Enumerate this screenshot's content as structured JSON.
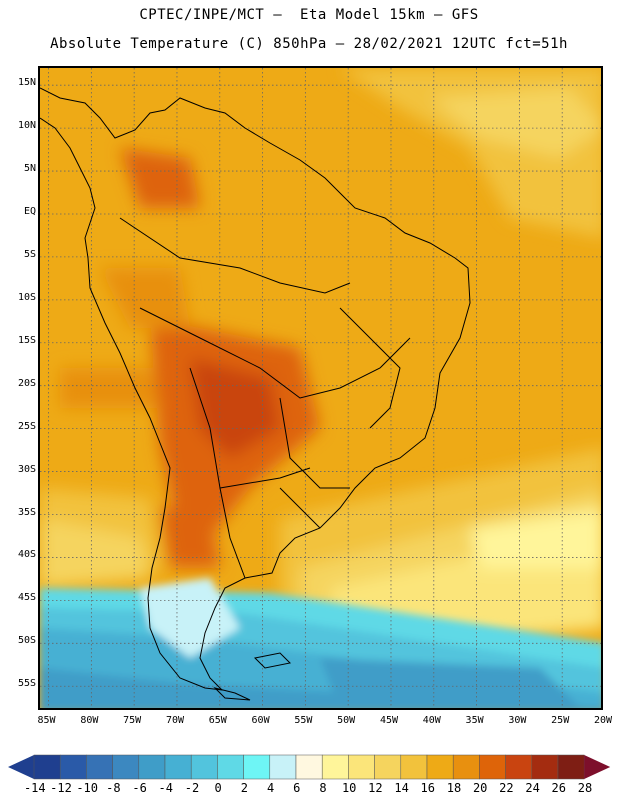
{
  "header": {
    "line1": "CPTEC/INPE/MCT –  Eta Model 15km – GFS",
    "line2": "Absolute Temperature (C) 850hPa – 28/02/2021 12UTC fct=51h"
  },
  "map": {
    "lon_range": [
      -86,
      -20
    ],
    "lat_range": [
      -58,
      17
    ],
    "lat_labels": [
      "15N",
      "10N",
      "5N",
      "EQ",
      "5S",
      "10S",
      "15S",
      "20S",
      "25S",
      "30S",
      "35S",
      "40S",
      "45S",
      "50S",
      "55S"
    ],
    "lat_values": [
      15,
      10,
      5,
      0,
      -5,
      -10,
      -15,
      -20,
      -25,
      -30,
      -35,
      -40,
      -45,
      -50,
      -55
    ],
    "lon_labels": [
      "85W",
      "80W",
      "75W",
      "70W",
      "65W",
      "60W",
      "55W",
      "50W",
      "45W",
      "40W",
      "35W",
      "30W",
      "25W",
      "20W"
    ],
    "lon_values": [
      -85,
      -80,
      -75,
      -70,
      -65,
      -60,
      -55,
      -50,
      -45,
      -40,
      -35,
      -30,
      -25,
      -20
    ],
    "gridline_style": "dotted"
  },
  "colorbar": {
    "labels": [
      "-14",
      "-12",
      "-10",
      "-8",
      "-6",
      "-4",
      "-2",
      "0",
      "2",
      "4",
      "6",
      "8",
      "10",
      "12",
      "14",
      "16",
      "18",
      "20",
      "22",
      "24",
      "26",
      "28"
    ],
    "colors": [
      "#1f3f8f",
      "#2a5aa8",
      "#3672b5",
      "#3c88c0",
      "#3f9dc8",
      "#46b0d3",
      "#52c4dd",
      "#5fd9e6",
      "#6ef5f5",
      "#c8f2f8",
      "#fff8e0",
      "#fff59a",
      "#fbe57a",
      "#f5d45e",
      "#f2c23c",
      "#eeaa16",
      "#e8900f",
      "#de6409",
      "#c94410",
      "#a42c10",
      "#7e1e14",
      "#7d0f2b"
    ]
  }
}
